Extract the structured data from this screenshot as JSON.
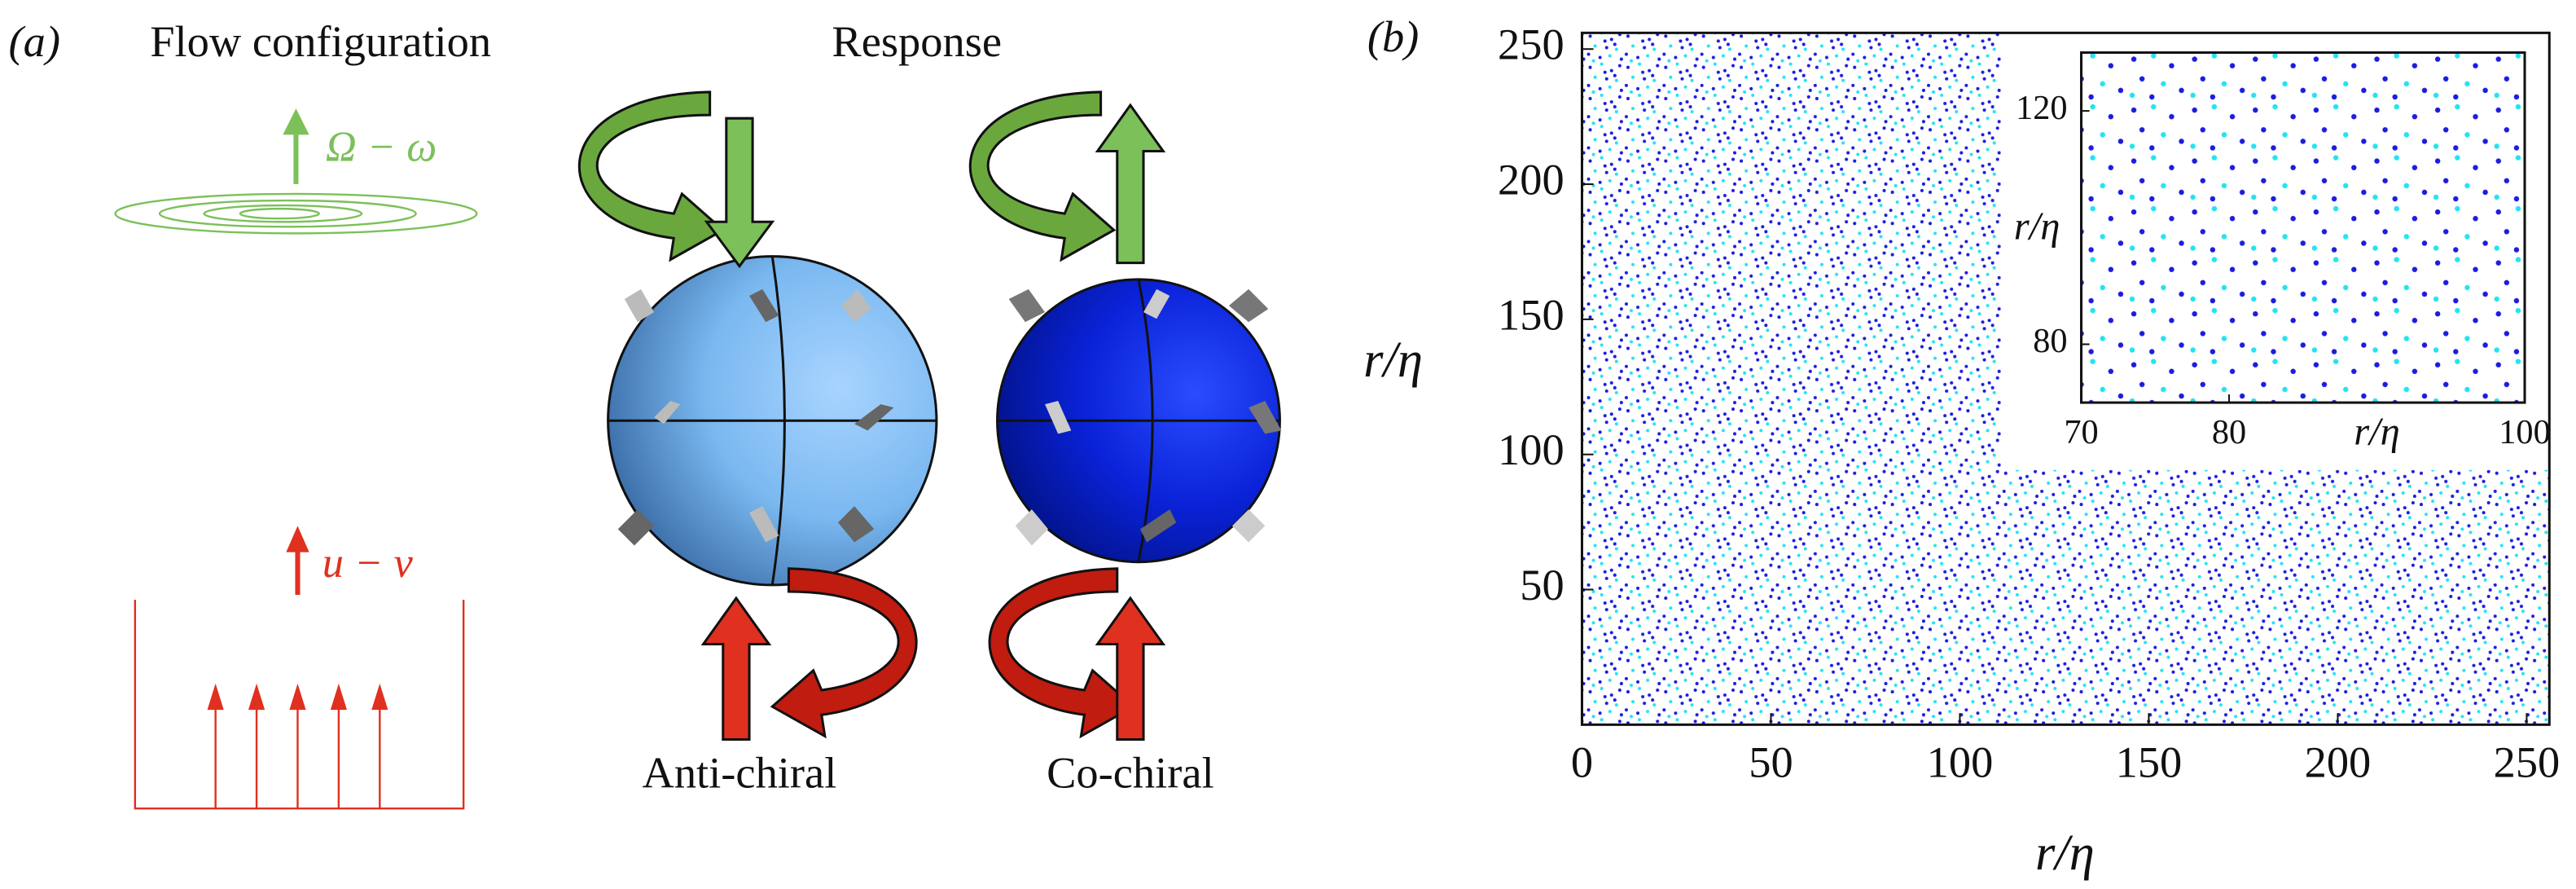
{
  "panel_a": {
    "label": "(a)",
    "flow_title": "Flow configuration",
    "response_title": "Response",
    "rotation_label": "Ω − ω",
    "velocity_label": "u − v",
    "anti_label": "Anti-chiral",
    "co_label": "Co-chiral"
  },
  "chart_data": [
    {
      "type": "scatter",
      "panel_label": "(b)",
      "x_label": "r/η",
      "y_label": "r/η",
      "xlim": [
        0,
        256
      ],
      "ylim": [
        0,
        256
      ],
      "xticks": [
        0,
        50,
        100,
        150,
        200,
        250
      ],
      "yticks": [
        50,
        100,
        150,
        200,
        250
      ],
      "colors": [
        "#1c1ce0",
        "#22e4f2"
      ]
    },
    {
      "type": "scatter",
      "x_label": "r/η",
      "y_label": "r/η",
      "xlim": [
        70,
        100
      ],
      "ylim": [
        70,
        130
      ],
      "xticks": [
        70,
        80,
        100
      ],
      "yticks": [
        80,
        120
      ],
      "colors": [
        "#1c1ce0",
        "#22e4f2"
      ]
    }
  ]
}
